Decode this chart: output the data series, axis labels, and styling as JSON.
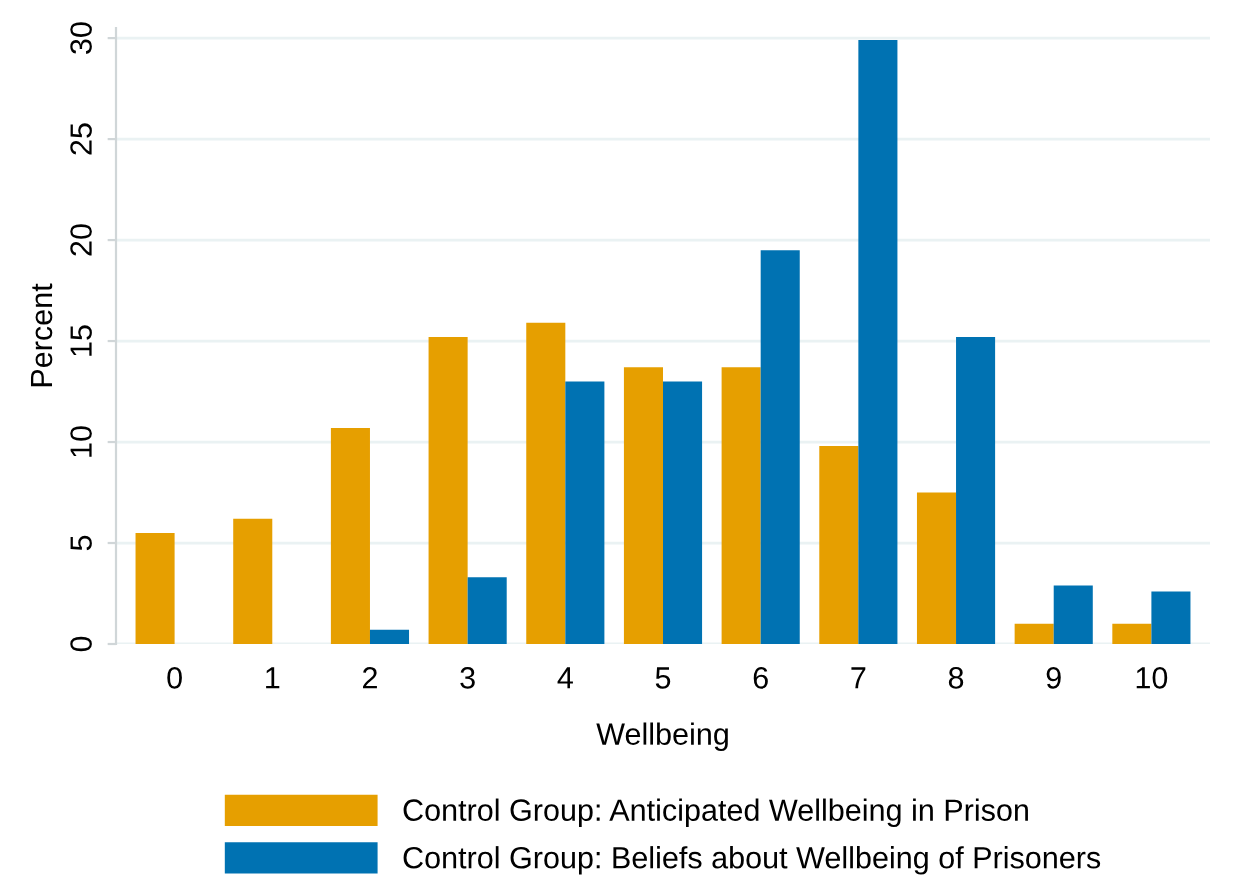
{
  "chart_data": {
    "type": "bar",
    "xlabel": "Wellbeing",
    "ylabel": "Percent",
    "categories": [
      "0",
      "1",
      "2",
      "3",
      "4",
      "5",
      "6",
      "7",
      "8",
      "9",
      "10"
    ],
    "series": [
      {
        "name": "Control Group: Anticipated Wellbeing in Prison",
        "color": "#e69f00",
        "values": [
          5.5,
          6.2,
          10.7,
          15.2,
          15.9,
          13.7,
          13.7,
          9.8,
          7.5,
          1.0,
          1.0
        ]
      },
      {
        "name": "Control Group: Beliefs about Wellbeing of Prisoners",
        "color": "#0072b2",
        "values": [
          null,
          null,
          0.7,
          3.3,
          13.0,
          13.0,
          19.5,
          29.9,
          15.2,
          2.9,
          2.6
        ]
      }
    ],
    "ylim": [
      0,
      30.5
    ],
    "yticks": [
      0,
      5,
      10,
      15,
      20,
      25,
      30
    ],
    "grid": "y",
    "legend": "bottom"
  }
}
